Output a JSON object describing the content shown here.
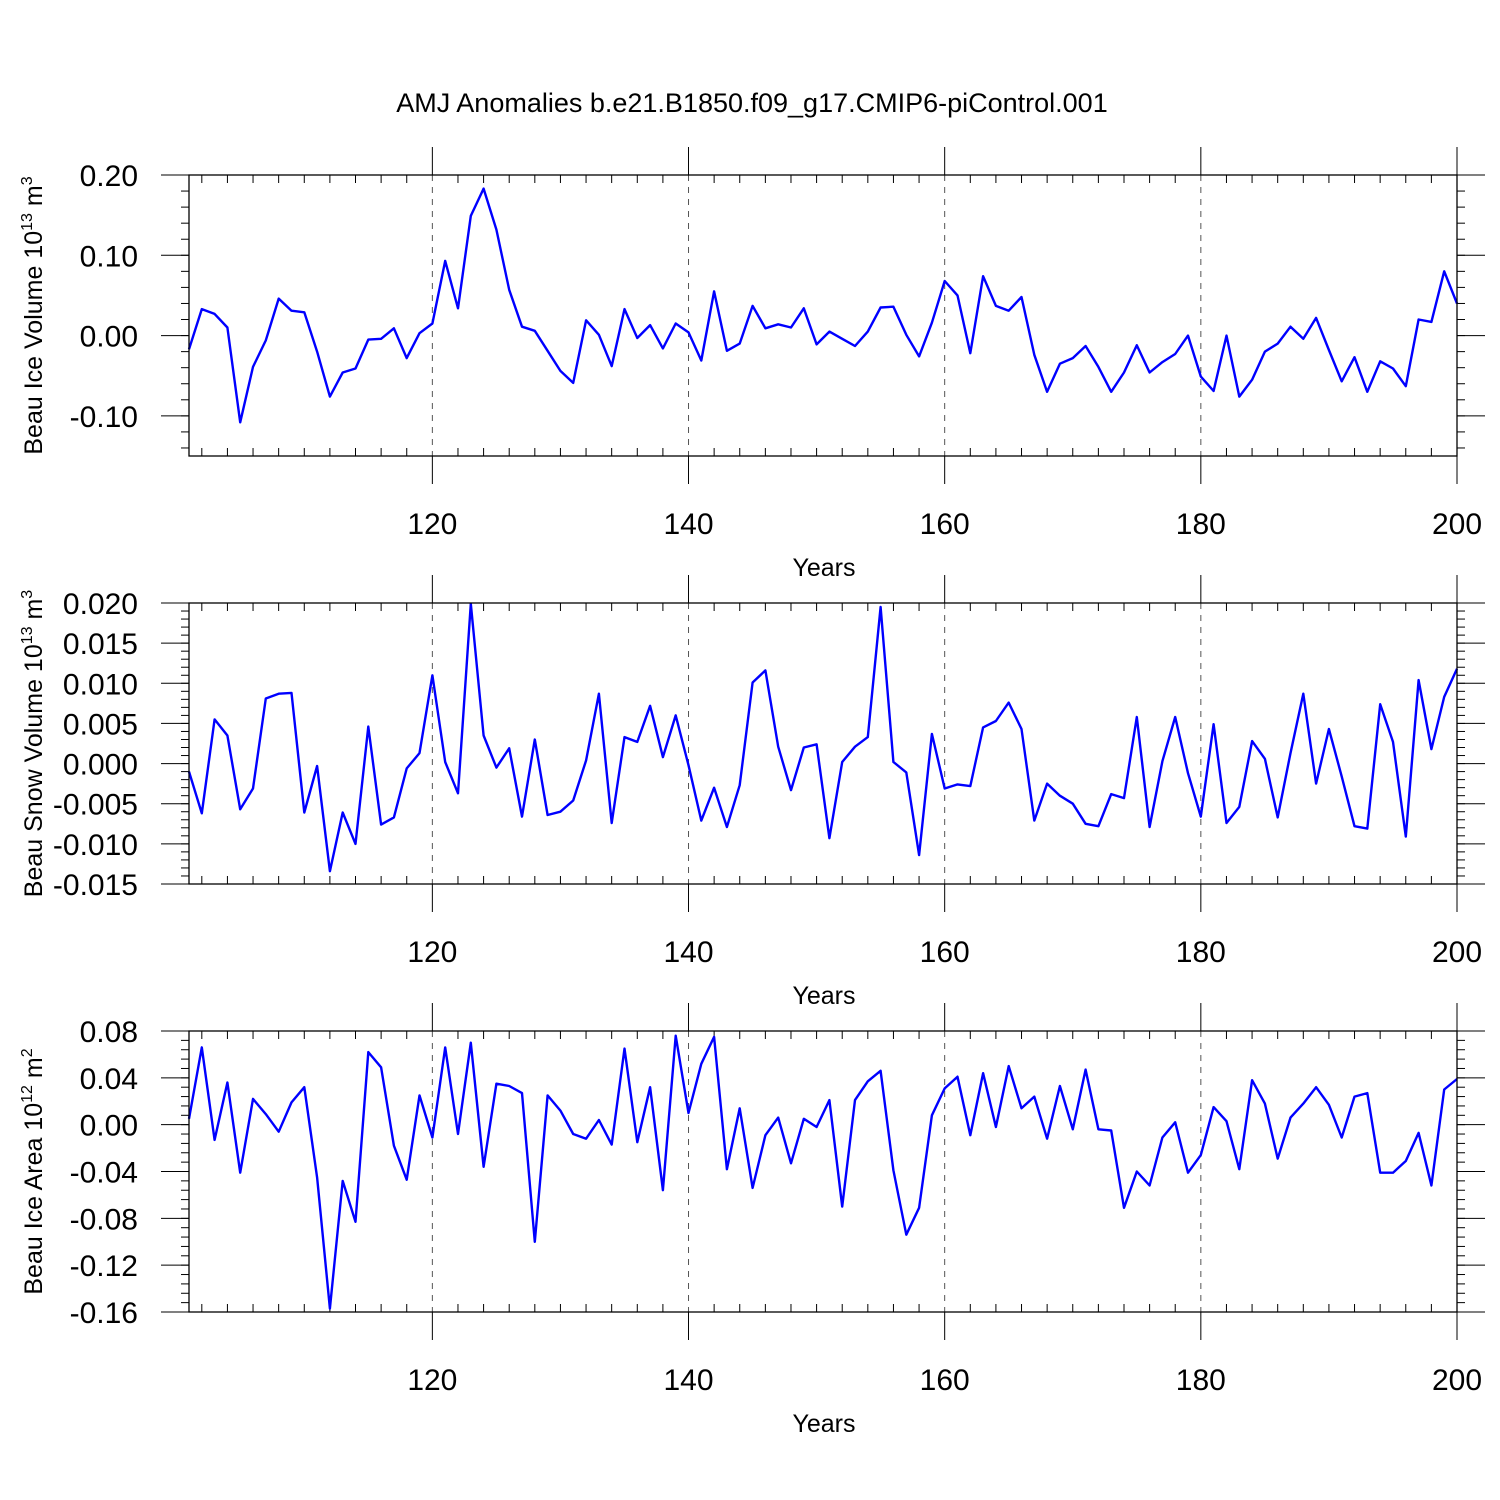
{
  "figure_title": "AMJ Anomalies b.e21.B1850.f09_g17.CMIP6-piControl.001",
  "colors": {
    "line": "#0000ff",
    "axis": "#000000",
    "grid": "#555555"
  },
  "chart_data": [
    {
      "type": "line",
      "title": "AMJ Anomalies b.e21.B1850.f09_g17.CMIP6-piControl.001",
      "xlabel": "Years",
      "ylabel_main": "Beau Ice Volume 10",
      "ylabel_exp": "13",
      "ylabel_unit": " m",
      "ylabel_unit_exp": "3",
      "xlim": [
        101,
        200
      ],
      "ylim": [
        -0.15,
        0.2
      ],
      "xticks": [
        120,
        140,
        160,
        180,
        200
      ],
      "xtick_labels": [
        "120",
        "140",
        "160",
        "180",
        "200"
      ],
      "yticks": [
        0.2,
        0.1,
        0.0,
        -0.1
      ],
      "ytick_labels": [
        "0.20",
        "0.10",
        "0.00",
        "-0.10"
      ],
      "grid": "vertical dashed",
      "x": [
        101,
        102,
        103,
        104,
        105,
        106,
        107,
        108,
        109,
        110,
        111,
        112,
        113,
        114,
        115,
        116,
        117,
        118,
        119,
        120,
        121,
        122,
        123,
        124,
        125,
        126,
        127,
        128,
        129,
        130,
        131,
        132,
        133,
        134,
        135,
        136,
        137,
        138,
        139,
        140,
        141,
        142,
        143,
        144,
        145,
        146,
        147,
        148,
        149,
        150,
        151,
        152,
        153,
        154,
        155,
        156,
        157,
        158,
        159,
        160,
        161,
        162,
        163,
        164,
        165,
        166,
        167,
        168,
        169,
        170,
        171,
        172,
        173,
        174,
        175,
        176,
        177,
        178,
        179,
        180,
        181,
        182,
        183,
        184,
        185,
        186,
        187,
        188,
        189,
        190,
        191,
        192,
        193,
        194,
        195,
        196,
        197,
        198,
        199,
        200
      ],
      "values": [
        -0.017,
        0.033,
        0.027,
        0.01,
        -0.108,
        -0.039,
        -0.006,
        0.046,
        0.031,
        0.029,
        -0.02,
        -0.076,
        -0.046,
        -0.041,
        -0.005,
        -0.004,
        0.009,
        -0.028,
        0.003,
        0.015,
        0.093,
        0.034,
        0.149,
        0.183,
        0.132,
        0.057,
        0.011,
        0.006,
        -0.019,
        -0.044,
        -0.059,
        0.019,
        0.001,
        -0.038,
        0.033,
        -0.003,
        0.013,
        -0.016,
        0.015,
        0.004,
        -0.031,
        0.055,
        -0.019,
        -0.01,
        0.037,
        0.009,
        0.014,
        0.01,
        0.034,
        -0.011,
        0.005,
        -0.004,
        -0.013,
        0.005,
        0.035,
        0.036,
        0.001,
        -0.026,
        0.016,
        0.068,
        0.05,
        -0.022,
        0.074,
        0.037,
        0.031,
        0.048,
        -0.024,
        -0.07,
        -0.035,
        -0.028,
        -0.013,
        -0.039,
        -0.07,
        -0.046,
        -0.012,
        -0.046,
        -0.033,
        -0.023,
        0.0,
        -0.051,
        -0.069,
        0.0,
        -0.076,
        -0.055,
        -0.02,
        -0.01,
        0.011,
        -0.004,
        0.022,
        -0.018,
        -0.057,
        -0.027,
        -0.07,
        -0.032,
        -0.041,
        -0.063,
        0.02,
        0.017,
        0.08,
        0.04
      ]
    },
    {
      "type": "line",
      "xlabel": "Years",
      "ylabel_main": "Beau Snow Volume 10",
      "ylabel_exp": "13",
      "ylabel_unit": " m",
      "ylabel_unit_exp": "3",
      "xlim": [
        101,
        200
      ],
      "ylim": [
        -0.015,
        0.02
      ],
      "xticks": [
        120,
        140,
        160,
        180,
        200
      ],
      "xtick_labels": [
        "120",
        "140",
        "160",
        "180",
        "200"
      ],
      "yticks": [
        0.02,
        0.015,
        0.01,
        0.005,
        0.0,
        -0.005,
        -0.01,
        -0.015
      ],
      "ytick_labels": [
        "0.020",
        "0.015",
        "0.010",
        "0.005",
        "0.000",
        "-0.005",
        "-0.010",
        "-0.015"
      ],
      "grid": "vertical dashed",
      "x": [
        101,
        102,
        103,
        104,
        105,
        106,
        107,
        108,
        109,
        110,
        111,
        112,
        113,
        114,
        115,
        116,
        117,
        118,
        119,
        120,
        121,
        122,
        123,
        124,
        125,
        126,
        127,
        128,
        129,
        130,
        131,
        132,
        133,
        134,
        135,
        136,
        137,
        138,
        139,
        140,
        141,
        142,
        143,
        144,
        145,
        146,
        147,
        148,
        149,
        150,
        151,
        152,
        153,
        154,
        155,
        156,
        157,
        158,
        159,
        160,
        161,
        162,
        163,
        164,
        165,
        166,
        167,
        168,
        169,
        170,
        171,
        172,
        173,
        174,
        175,
        176,
        177,
        178,
        179,
        180,
        181,
        182,
        183,
        184,
        185,
        186,
        187,
        188,
        189,
        190,
        191,
        192,
        193,
        194,
        195,
        196,
        197,
        198,
        199,
        200
      ],
      "values": [
        -0.001,
        -0.0062,
        0.0055,
        0.0035,
        -0.0057,
        -0.0031,
        0.0081,
        0.0087,
        0.0088,
        -0.0061,
        -0.0003,
        -0.0134,
        -0.0061,
        -0.01,
        0.0046,
        -0.0076,
        -0.0067,
        -0.0006,
        0.0013,
        0.011,
        0.0002,
        -0.0037,
        0.0199,
        0.0035,
        -0.0005,
        0.0019,
        -0.0066,
        0.003,
        -0.0064,
        -0.006,
        -0.0046,
        0.0004,
        0.0087,
        -0.0074,
        0.0033,
        0.0027,
        0.0072,
        0.0008,
        0.006,
        -0.0002,
        -0.0071,
        -0.003,
        -0.0079,
        -0.0027,
        0.0101,
        0.0116,
        0.0021,
        -0.0033,
        0.002,
        0.0024,
        -0.0093,
        0.0002,
        0.0021,
        0.0033,
        0.0195,
        0.0002,
        -0.0011,
        -0.0114,
        0.0037,
        -0.0031,
        -0.0026,
        -0.0028,
        0.0045,
        0.0053,
        0.0076,
        0.0043,
        -0.0071,
        -0.0025,
        -0.004,
        -0.005,
        -0.0075,
        -0.0078,
        -0.0038,
        -0.0043,
        0.0058,
        -0.0079,
        0.0003,
        0.0058,
        -0.0012,
        -0.0066,
        0.0049,
        -0.0074,
        -0.0054,
        0.0028,
        0.0006,
        -0.0067,
        0.0013,
        0.0087,
        -0.0025,
        0.0043,
        -0.0016,
        -0.0078,
        -0.0081,
        0.0074,
        0.0027,
        -0.0091,
        0.0104,
        0.0018,
        0.0083,
        0.0118
      ]
    },
    {
      "type": "line",
      "xlabel": "Years",
      "ylabel_main": "Beau Ice Area 10",
      "ylabel_exp": "12",
      "ylabel_unit": " m",
      "ylabel_unit_exp": "2",
      "xlim": [
        101,
        200
      ],
      "ylim": [
        -0.16,
        0.08
      ],
      "xticks": [
        120,
        140,
        160,
        180,
        200
      ],
      "xtick_labels": [
        "120",
        "140",
        "160",
        "180",
        "200"
      ],
      "yticks": [
        0.08,
        0.04,
        0.0,
        -0.04,
        -0.08,
        -0.12,
        -0.16
      ],
      "ytick_labels": [
        "0.08",
        "0.04",
        "0.00",
        "-0.04",
        "-0.08",
        "-0.12",
        "-0.16"
      ],
      "grid": "vertical dashed",
      "x": [
        101,
        102,
        103,
        104,
        105,
        106,
        107,
        108,
        109,
        110,
        111,
        112,
        113,
        114,
        115,
        116,
        117,
        118,
        119,
        120,
        121,
        122,
        123,
        124,
        125,
        126,
        127,
        128,
        129,
        130,
        131,
        132,
        133,
        134,
        135,
        136,
        137,
        138,
        139,
        140,
        141,
        142,
        143,
        144,
        145,
        146,
        147,
        148,
        149,
        150,
        151,
        152,
        153,
        154,
        155,
        156,
        157,
        158,
        159,
        160,
        161,
        162,
        163,
        164,
        165,
        166,
        167,
        168,
        169,
        170,
        171,
        172,
        173,
        174,
        175,
        176,
        177,
        178,
        179,
        180,
        181,
        182,
        183,
        184,
        185,
        186,
        187,
        188,
        189,
        190,
        191,
        192,
        193,
        194,
        195,
        196,
        197,
        198,
        199,
        200
      ],
      "values": [
        0.005,
        0.066,
        -0.013,
        0.036,
        -0.041,
        0.022,
        0.009,
        -0.006,
        0.019,
        0.032,
        -0.045,
        -0.157,
        -0.048,
        -0.083,
        0.062,
        0.049,
        -0.018,
        -0.047,
        0.025,
        -0.011,
        0.066,
        -0.008,
        0.07,
        -0.036,
        0.035,
        0.033,
        0.027,
        -0.1,
        0.025,
        0.012,
        -0.008,
        -0.012,
        0.004,
        -0.017,
        0.065,
        -0.015,
        0.032,
        -0.056,
        0.076,
        0.01,
        0.052,
        0.075,
        -0.038,
        0.014,
        -0.054,
        -0.009,
        0.006,
        -0.033,
        0.005,
        -0.002,
        0.021,
        -0.07,
        0.021,
        0.037,
        0.046,
        -0.039,
        -0.094,
        -0.071,
        0.008,
        0.031,
        0.041,
        -0.009,
        0.044,
        -0.002,
        0.05,
        0.014,
        0.024,
        -0.012,
        0.033,
        -0.004,
        0.047,
        -0.004,
        -0.005,
        -0.071,
        -0.04,
        -0.052,
        -0.011,
        0.002,
        -0.041,
        -0.026,
        0.015,
        0.003,
        -0.038,
        0.038,
        0.018,
        -0.029,
        0.006,
        0.018,
        0.032,
        0.017,
        -0.011,
        0.024,
        0.027,
        -0.041,
        -0.041,
        -0.031,
        -0.007,
        -0.052,
        0.03,
        0.039
      ]
    }
  ]
}
